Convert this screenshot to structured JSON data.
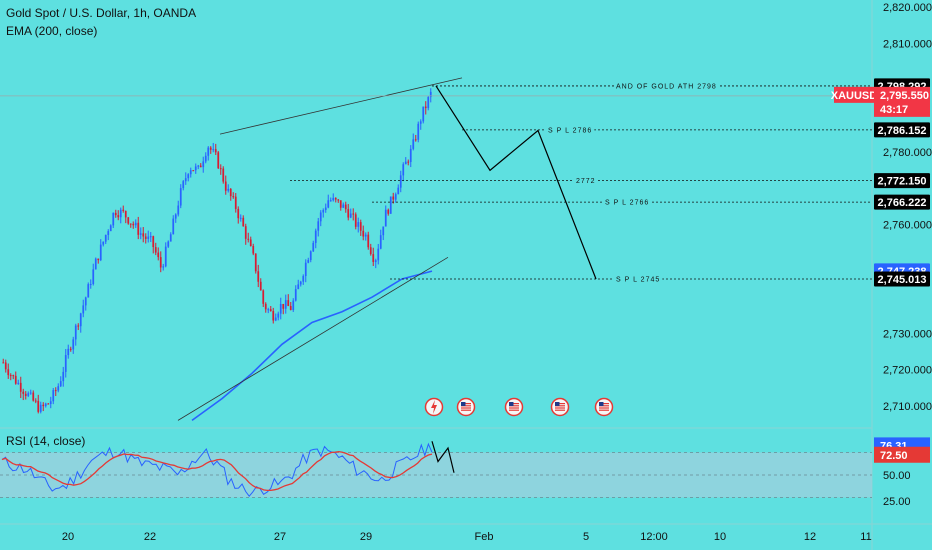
{
  "header": {
    "symbol_line": "Gold Spot / U.S. Dollar, 1h, OANDA",
    "indicator": "EMA (200, close)",
    "rsi_title": "RSI (14, close)"
  },
  "colors": {
    "background": "#5ee0e0",
    "candle_up": "#2962ff",
    "candle_down": "#d81b32",
    "ema": "#2962ff",
    "rsi_line": "#2962ff",
    "rsi_ma": "#e53935",
    "rsi_band": "#9fd0dd",
    "level_tag": "#000000",
    "xauusd_tag": "#f23645"
  },
  "price_axis": {
    "ticks": [
      "2,820.000",
      "2,810.000",
      "2,780.000",
      "2,760.000",
      "2,730.000",
      "2,720.000",
      "2,710.000"
    ],
    "tick_values": [
      2820,
      2810,
      2780,
      2760,
      2730,
      2720,
      2710
    ],
    "ylim": [
      2705,
      2822
    ]
  },
  "tags": {
    "ath": {
      "value": 2798.292,
      "text": "2,798.292"
    },
    "xauusd": {
      "symbol": "XAUUSD",
      "price": "2,795.550",
      "countdown": "43:17",
      "value": 2795.55
    },
    "spl2786": {
      "value": 2786.152,
      "text": "2,786.152"
    },
    "lvl2772": {
      "value": 2772.15,
      "text": "2,772.150"
    },
    "spl2766": {
      "value": 2766.222,
      "text": "2,766.222"
    },
    "ema_now": {
      "value": 2747.238,
      "text": "2,747.238"
    },
    "spl2745": {
      "value": 2745.013,
      "text": "2,745.013"
    }
  },
  "levels": [
    {
      "label": "AND OF  GOLD ATH 2798",
      "value": 2798.292
    },
    {
      "label": "S P L 2786",
      "value": 2786.152
    },
    {
      "label": "2772",
      "value": 2772.15
    },
    {
      "label": "S P L 2766",
      "value": 2766.222
    },
    {
      "label": "S P L 2745",
      "value": 2745.013
    }
  ],
  "rsi": {
    "current": "76.31",
    "ma_current": "72.50",
    "ticks": [
      "50.00",
      "25.00"
    ],
    "upper": 70,
    "lower": 30
  },
  "time_axis": {
    "labels": [
      "20",
      "22",
      "27",
      "29",
      "Feb",
      "5",
      "12:00",
      "10",
      "12",
      "11"
    ]
  },
  "chart_data": {
    "type": "candlestick",
    "title": "Gold Spot / U.S. Dollar, 1h, OANDA",
    "ylim": [
      2705,
      2822
    ],
    "close_path": [
      2722,
      2718,
      2715,
      2712,
      2709,
      2711,
      2716,
      2725,
      2733,
      2741,
      2750,
      2757,
      2764,
      2763,
      2760,
      2757,
      2755,
      2748,
      2757,
      2768,
      2776,
      2775,
      2782,
      2778,
      2770,
      2765,
      2758,
      2750,
      2738,
      2735,
      2738,
      2737,
      2745,
      2753,
      2762,
      2767,
      2766,
      2764,
      2760,
      2757,
      2750,
      2762,
      2768,
      2775,
      2781,
      2790,
      2796
    ],
    "ema200_path": [
      2706,
      2712,
      2719,
      2727,
      2733,
      2736,
      2740,
      2745,
      2747.2
    ],
    "projection_path": [
      2798.3,
      2775,
      2786,
      2745
    ],
    "annotations": [
      "AND OF  GOLD ATH 2798",
      "S P L 2786",
      "2772",
      "S P L 2766",
      "S P L 2745"
    ],
    "rsi_series": [
      {
        "name": "RSI (14, close)",
        "last": 76.31
      },
      {
        "name": "RSI MA",
        "last": 72.5
      }
    ]
  },
  "events": [
    {
      "icon": "lightning-icon"
    },
    {
      "icon": "us-flag-icon"
    },
    {
      "icon": "us-flag-icon"
    },
    {
      "icon": "us-flag-icon"
    },
    {
      "icon": "us-flag-icon"
    }
  ]
}
